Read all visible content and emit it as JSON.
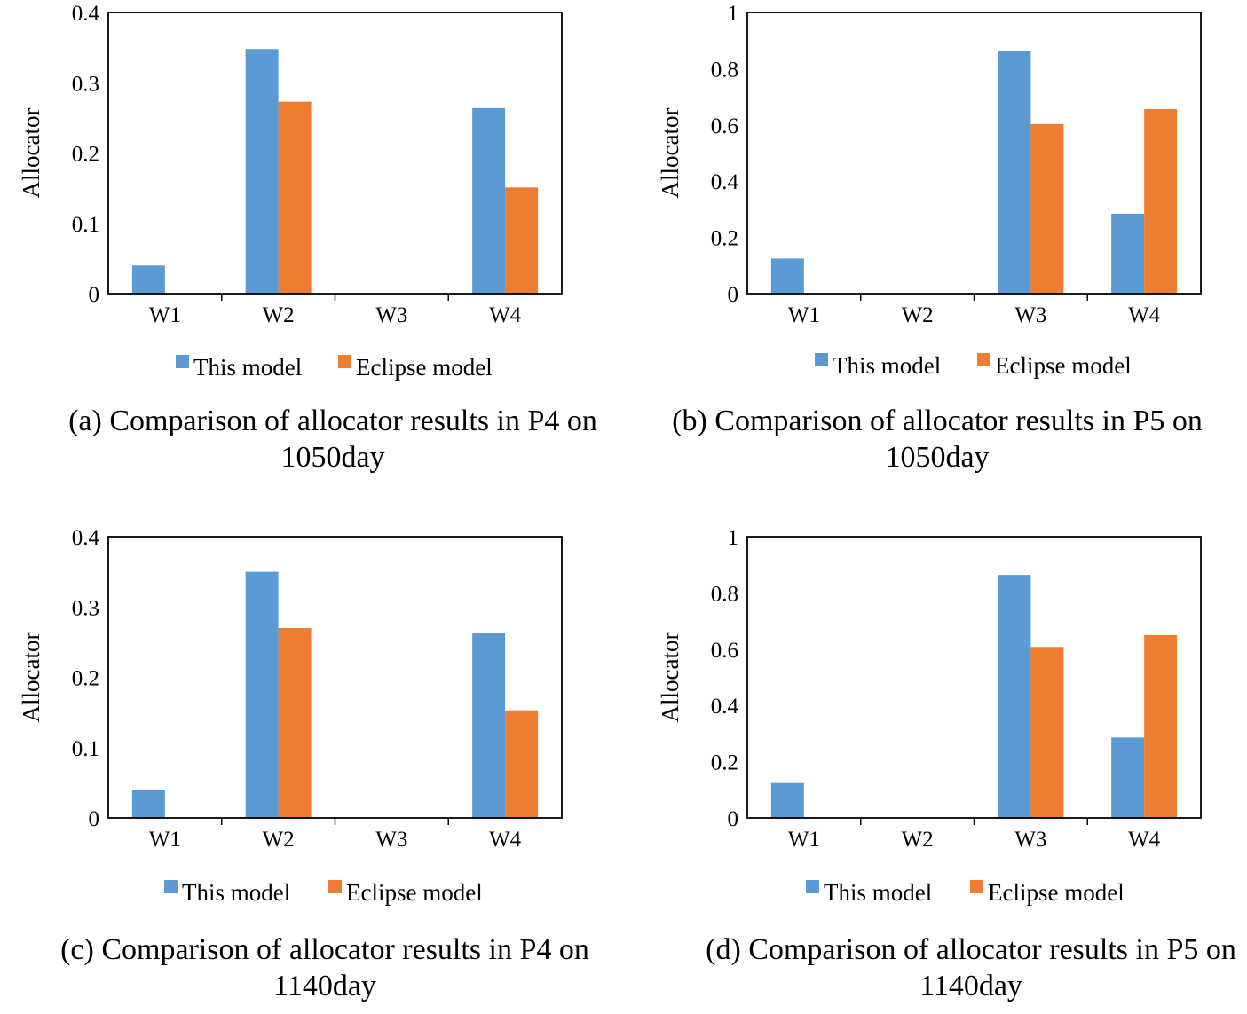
{
  "colors": {
    "this_model": "#5B9BD5",
    "eclipse_model": "#ED7D31"
  },
  "chart_data": [
    {
      "type": "bar",
      "categories": [
        "W1",
        "W2",
        "W3",
        "W4"
      ],
      "series": [
        {
          "name": "This model",
          "values": [
            0.04,
            0.348,
            0,
            0.264
          ]
        },
        {
          "name": "Eclipse model",
          "values": [
            0,
            0.273,
            0,
            0.151
          ]
        }
      ],
      "ylabel": "Allocator",
      "ylim": [
        0,
        0.4
      ],
      "yticks": [
        "0",
        "0.1",
        "0.2",
        "0.3",
        "0.4"
      ],
      "caption_line1": "(a) Comparison of allocator results in P4 on",
      "caption_line2": "1050day"
    },
    {
      "type": "bar",
      "categories": [
        "W1",
        "W2",
        "W3",
        "W4"
      ],
      "series": [
        {
          "name": "This model",
          "values": [
            0.125,
            0,
            0.862,
            0.284
          ]
        },
        {
          "name": "Eclipse model",
          "values": [
            0,
            0,
            0.603,
            0.656
          ]
        }
      ],
      "ylabel": "Allocator",
      "ylim": [
        0,
        1
      ],
      "yticks": [
        "0",
        "0.2",
        "0.4",
        "0.6",
        "0.8",
        "1"
      ],
      "caption_line1": "(b) Comparison of allocator results in P5 on",
      "caption_line2": "1050day"
    },
    {
      "type": "bar",
      "categories": [
        "W1",
        "W2",
        "W3",
        "W4"
      ],
      "series": [
        {
          "name": "This model",
          "values": [
            0.04,
            0.35,
            0,
            0.263
          ]
        },
        {
          "name": "Eclipse model",
          "values": [
            0,
            0.27,
            0,
            0.153
          ]
        }
      ],
      "ylabel": "Allocator",
      "ylim": [
        0,
        0.4
      ],
      "yticks": [
        "0",
        "0.1",
        "0.2",
        "0.3",
        "0.4"
      ],
      "caption_line1": "(c) Comparison of allocator results in P4 on",
      "caption_line2": "1140day"
    },
    {
      "type": "bar",
      "categories": [
        "W1",
        "W2",
        "W3",
        "W4"
      ],
      "series": [
        {
          "name": "This model",
          "values": [
            0.124,
            0,
            0.864,
            0.286
          ]
        },
        {
          "name": "Eclipse model",
          "values": [
            0,
            0,
            0.608,
            0.65
          ]
        }
      ],
      "ylabel": "Allocator",
      "ylim": [
        0,
        1
      ],
      "yticks": [
        "0",
        "0.2",
        "0.4",
        "0.6",
        "0.8",
        "1"
      ],
      "caption_line1": "(d) Comparison of allocator results in P5 on",
      "caption_line2": "1140day"
    }
  ]
}
